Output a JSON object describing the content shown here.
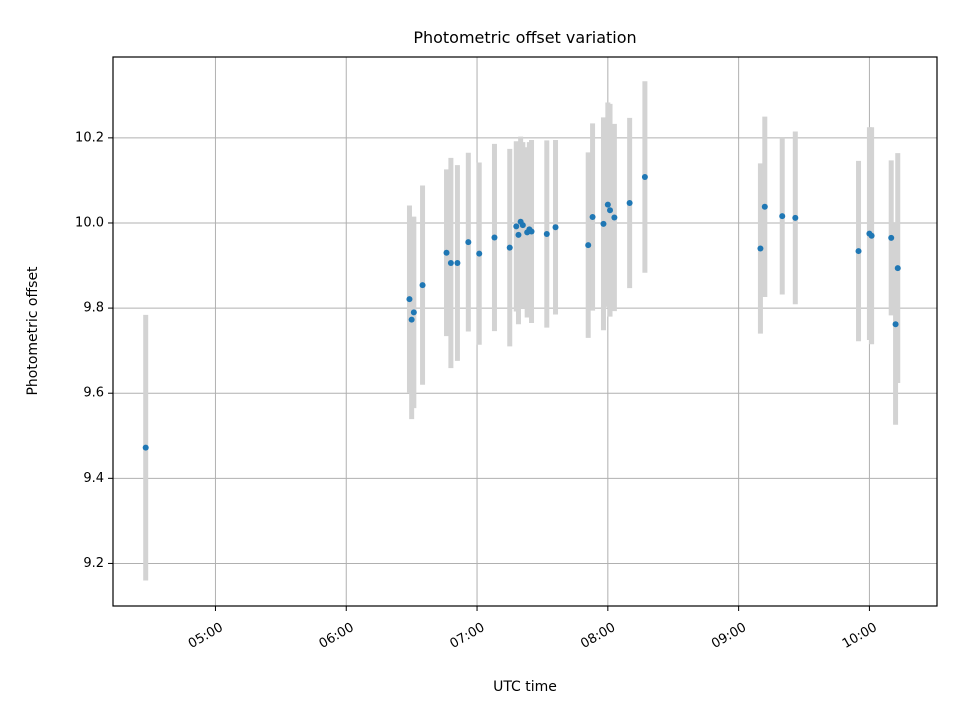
{
  "chart_data": {
    "type": "scatter",
    "title": "Photometric offset variation",
    "xlabel": "UTC time",
    "ylabel": "Photometric offset",
    "xlim": [
      "04:13",
      "10:31"
    ],
    "ylim": [
      9.1,
      10.39
    ],
    "grid": true,
    "x_ticks": [
      "05:00",
      "06:00",
      "07:00",
      "08:00",
      "09:00",
      "10:00"
    ],
    "y_ticks": [
      9.2,
      9.4,
      9.6,
      9.8,
      10.0,
      10.2
    ],
    "colors": {
      "points": "#1f77b4",
      "error_bars": "#d3d3d3",
      "grid": "#b0b0b0"
    },
    "points": [
      {
        "x": "04:28",
        "y": 9.472,
        "err": 0.312
      },
      {
        "x": "06:29",
        "y": 9.821,
        "err": 0.22
      },
      {
        "x": "06:30",
        "y": 9.773,
        "err": 0.234
      },
      {
        "x": "06:31",
        "y": 9.79,
        "err": 0.225
      },
      {
        "x": "06:35",
        "y": 9.854,
        "err": 0.234
      },
      {
        "x": "06:46",
        "y": 9.93,
        "err": 0.196
      },
      {
        "x": "06:48",
        "y": 9.906,
        "err": 0.247
      },
      {
        "x": "06:51",
        "y": 9.906,
        "err": 0.23
      },
      {
        "x": "06:56",
        "y": 9.955,
        "err": 0.21
      },
      {
        "x": "07:01",
        "y": 9.928,
        "err": 0.214
      },
      {
        "x": "07:08",
        "y": 9.966,
        "err": 0.22
      },
      {
        "x": "07:15",
        "y": 9.942,
        "err": 0.232
      },
      {
        "x": "07:18",
        "y": 9.992,
        "err": 0.2
      },
      {
        "x": "07:19",
        "y": 9.972,
        "err": 0.21
      },
      {
        "x": "07:20",
        "y": 10.003,
        "err": 0.2
      },
      {
        "x": "07:21",
        "y": 9.995,
        "err": 0.195
      },
      {
        "x": "07:23",
        "y": 9.978,
        "err": 0.2
      },
      {
        "x": "07:24",
        "y": 9.985,
        "err": 0.205
      },
      {
        "x": "07:25",
        "y": 9.98,
        "err": 0.215
      },
      {
        "x": "07:32",
        "y": 9.974,
        "err": 0.22
      },
      {
        "x": "07:36",
        "y": 9.99,
        "err": 0.205
      },
      {
        "x": "07:51",
        "y": 9.948,
        "err": 0.218
      },
      {
        "x": "07:53",
        "y": 10.014,
        "err": 0.22
      },
      {
        "x": "07:58",
        "y": 9.998,
        "err": 0.25
      },
      {
        "x": "08:00",
        "y": 10.043,
        "err": 0.24
      },
      {
        "x": "08:01",
        "y": 10.03,
        "err": 0.25
      },
      {
        "x": "08:03",
        "y": 10.013,
        "err": 0.22
      },
      {
        "x": "08:10",
        "y": 10.047,
        "err": 0.2
      },
      {
        "x": "08:17",
        "y": 10.108,
        "err": 0.225
      },
      {
        "x": "09:10",
        "y": 9.94,
        "err": 0.2
      },
      {
        "x": "09:12",
        "y": 10.038,
        "err": 0.212
      },
      {
        "x": "09:20",
        "y": 10.016,
        "err": 0.184
      },
      {
        "x": "09:26",
        "y": 10.012,
        "err": 0.203
      },
      {
        "x": "09:55",
        "y": 9.934,
        "err": 0.212
      },
      {
        "x": "10:00",
        "y": 9.975,
        "err": 0.25
      },
      {
        "x": "10:01",
        "y": 9.97,
        "err": 0.255
      },
      {
        "x": "10:10",
        "y": 9.965,
        "err": 0.182
      },
      {
        "x": "10:12",
        "y": 9.762,
        "err": 0.236
      },
      {
        "x": "10:13",
        "y": 9.894,
        "err": 0.27
      }
    ]
  }
}
